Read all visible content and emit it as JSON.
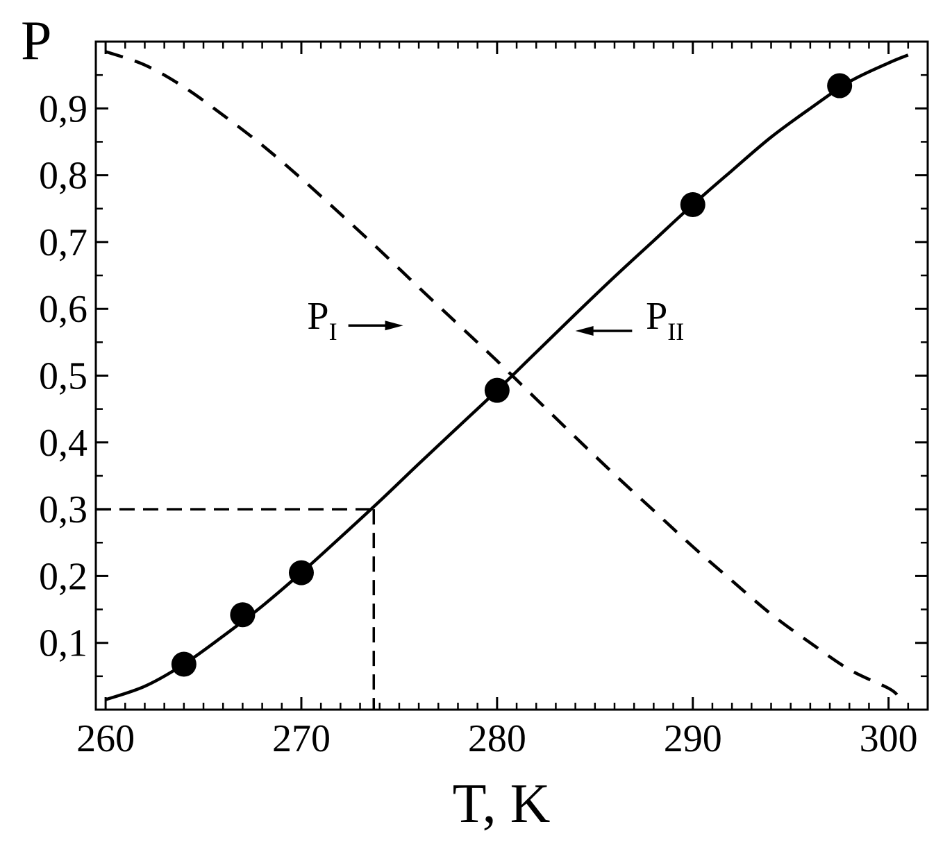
{
  "chart_data": {
    "type": "line",
    "title": "",
    "xlabel": "T, K",
    "ylabel": "P",
    "xlim": [
      259.5,
      302
    ],
    "ylim": [
      0,
      1
    ],
    "x_ticks": [
      260,
      270,
      280,
      290,
      300
    ],
    "x_tick_labels": [
      "260",
      "270",
      "280",
      "290",
      "300"
    ],
    "x_minor_step": 1,
    "y_ticks": [
      0.1,
      0.2,
      0.3,
      0.4,
      0.5,
      0.6,
      0.7,
      0.8,
      0.9
    ],
    "y_tick_labels": [
      "0,1",
      "0,2",
      "0,3",
      "0,4",
      "0,5",
      "0,6",
      "0,7",
      "0,8",
      "0,9"
    ],
    "y_minor_step": 0.05,
    "grid": false,
    "series": [
      {
        "name": "PII",
        "style": "solid",
        "color": "#000000",
        "x": [
          260,
          262,
          264,
          266,
          268,
          270,
          272,
          274,
          276,
          278,
          280,
          282,
          284,
          286,
          288,
          290,
          292,
          294,
          296,
          298,
          300,
          301
        ],
        "y": [
          0.015,
          0.035,
          0.068,
          0.11,
          0.155,
          0.205,
          0.258,
          0.312,
          0.368,
          0.423,
          0.478,
          0.535,
          0.592,
          0.648,
          0.702,
          0.756,
          0.807,
          0.857,
          0.9,
          0.94,
          0.968,
          0.98
        ]
      },
      {
        "name": "PI",
        "style": "dashed",
        "color": "#000000",
        "x": [
          260,
          262,
          264,
          266,
          268,
          270,
          272,
          274,
          276,
          278,
          280,
          282,
          284,
          286,
          288,
          290,
          292,
          294,
          296,
          298,
          300,
          300.5
        ],
        "y": [
          0.985,
          0.965,
          0.932,
          0.89,
          0.845,
          0.795,
          0.742,
          0.688,
          0.632,
          0.577,
          0.522,
          0.465,
          0.408,
          0.352,
          0.298,
          0.244,
          0.193,
          0.143,
          0.1,
          0.06,
          0.032,
          0.02
        ]
      }
    ],
    "points": {
      "x": [
        264,
        267,
        270,
        280,
        290,
        297.5
      ],
      "y": [
        0.068,
        0.142,
        0.205,
        0.478,
        0.756,
        0.934
      ]
    },
    "reference_lines": {
      "x": 273.7,
      "y": 0.3
    },
    "annotations": [
      {
        "label": "P",
        "subscript": "I",
        "x": 270.3,
        "y": 0.57,
        "arrow_from": 272.4,
        "arrow_to": 275.2,
        "arrow_y": 0.575
      },
      {
        "label": "P",
        "subscript": "II",
        "x": 287.6,
        "y": 0.57,
        "arrow_from": 286.9,
        "arrow_to": 284.0,
        "arrow_y": 0.567
      }
    ]
  }
}
